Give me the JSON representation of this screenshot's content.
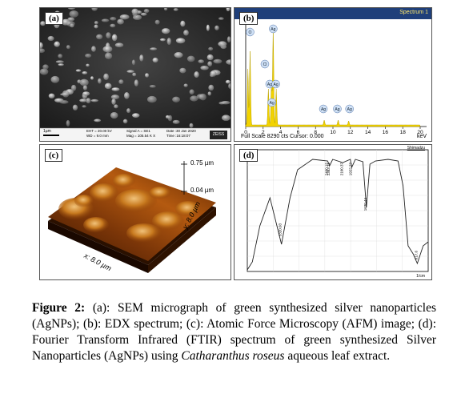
{
  "panels": {
    "a": {
      "label": "(a)",
      "scalebar": "1µm",
      "info": {
        "eht": "EHT = 20.00 kV",
        "wd": "WD = 9.0 mm",
        "signal": "Signal A = SE1",
        "mag": "Mag = 105.54 K X",
        "date": "Date :30 Jan 2020",
        "time": "Time :16:18:07",
        "logo": "ZEISS"
      }
    },
    "b": {
      "label": "(b)",
      "title": "Spectrum 1",
      "footer": "Full Scale 8290 cts Cursor: 0.000",
      "unit": "keV",
      "ticks": [
        "0",
        "2",
        "4",
        "6",
        "8",
        "10",
        "12",
        "14",
        "16",
        "18",
        "20"
      ],
      "peaks": [
        "O",
        "Ag",
        "Cl",
        "Ag",
        "Ag",
        "Ag",
        "Ag",
        "Ag",
        "Ag"
      ]
    },
    "c": {
      "label": "(c)",
      "z_top": "0.75 µm",
      "z_mid": "0.04 µm",
      "y_axis": "y: 8.0 µm",
      "x_axis": "x: 8.0 µm"
    },
    "d": {
      "label": "(d)",
      "header": "Shimadzu",
      "xlabel": "1/cm",
      "peaks": [
        "3320.03",
        "2400.15",
        "2363.71",
        "2100.37",
        "1922.27",
        "1630.44",
        "617.6"
      ]
    }
  },
  "caption": {
    "lead": "Figure 2:",
    "body": " (a): SEM micrograph of green synthesized silver nanoparticles (AgNPs); (b): EDX spectrum; (c): Atomic Force Microscopy (AFM) image; (d): Fourier Transform Infrared (FTIR) spectrum of green synthesized Silver Nanoparticles (AgNPs) using ",
    "species": "Catharanthus roseus",
    "tail": " aqueous leaf extract."
  }
}
